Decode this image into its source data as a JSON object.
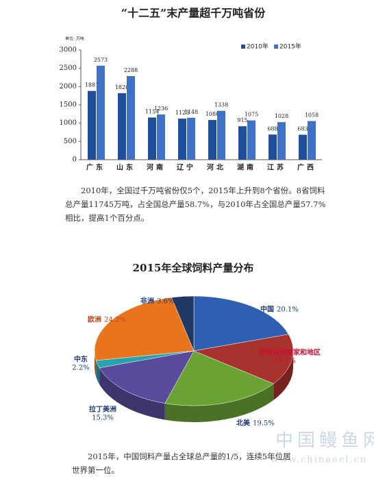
{
  "chart_data": [
    {
      "type": "bar",
      "title": "“十二五”末产量超千万吨省份",
      "unit": "单位: 万吨",
      "categories": [
        "广东",
        "山东",
        "河南",
        "辽宁",
        "河北",
        "湖南",
        "江苏",
        "广西"
      ],
      "series": [
        {
          "name": "2010年",
          "color": "#1f4e9c",
          "values": [
            1881,
            1820,
            1154,
            1123,
            1086,
            915,
            688,
            683
          ]
        },
        {
          "name": "2015年",
          "color": "#3d72c8",
          "values": [
            2573,
            2288,
            1236,
            1148,
            1338,
            1075,
            1028,
            1058
          ]
        }
      ],
      "ylim": [
        0,
        3000
      ],
      "yticks": [
        0,
        500,
        1000,
        1500,
        2000,
        2500,
        3000
      ],
      "legend": "top-right"
    },
    {
      "type": "pie",
      "title": "2015年全球饲料产量分布",
      "categories": [
        "中国",
        "亚洲其他国家和地区",
        "北美",
        "拉丁美洲",
        "中东",
        "欧洲",
        "非洲"
      ],
      "values": [
        20.1,
        15.1,
        19.5,
        15.3,
        2.2,
        24.2,
        3.6
      ],
      "value_labels": [
        "20.1%",
        "15.1%",
        "19.5%",
        "15.3%",
        "2.2%",
        "24.2%",
        "3.6%"
      ],
      "colors": [
        "#2f5fb0",
        "#a8322e",
        "#6aa334",
        "#5a4a9c",
        "#26a3b0",
        "#e8741e",
        "#1f3864"
      ]
    }
  ],
  "paragraphs": [
    "2010年，全国过千万吨省份仅5个，2015年上升到8个省份。8省饲料总产量11745万吨，占全国总产量58.7%，与2010年占全国总产量57.7%相比，提高1个百分点。",
    "2015年，中国饲料产量占全球总产量的1/5，连续5年位居世界第一位。"
  ],
  "watermark": [
    "中国鳗鱼网",
    "www.chinaeel.cn"
  ]
}
